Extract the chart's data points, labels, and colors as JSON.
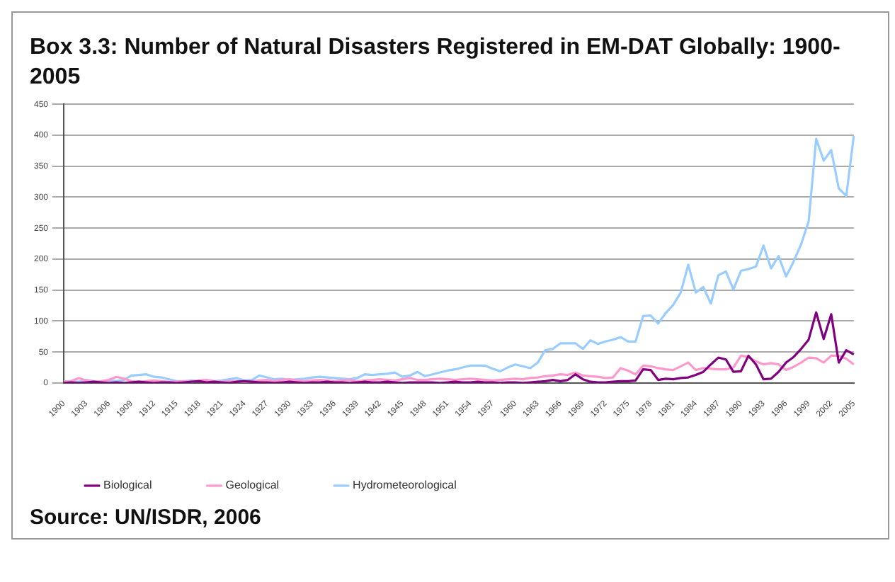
{
  "chart_data": {
    "type": "line",
    "title": "Box 3.3: Number of Natural Disasters Registered in EM-DAT Globally: 1900-2005",
    "categories": [
      "1900",
      null,
      null,
      "1903",
      null,
      null,
      "1906",
      null,
      null,
      "1909",
      null,
      null,
      "1912",
      null,
      null,
      "1915",
      null,
      null,
      "1918",
      null,
      null,
      "1921",
      null,
      null,
      "1924",
      null,
      null,
      "1927",
      null,
      null,
      "1930",
      null,
      null,
      "1933",
      null,
      null,
      "1936",
      null,
      null,
      "1939",
      null,
      null,
      "1942",
      null,
      null,
      "1945",
      null,
      null,
      "1948",
      null,
      null,
      "1951",
      null,
      null,
      "1954",
      null,
      null,
      "1957",
      null,
      null,
      "1960",
      null,
      null,
      "1963",
      null,
      null,
      "1966",
      null,
      null,
      "1969",
      null,
      null,
      "1972",
      null,
      null,
      "1975",
      null,
      null,
      "1978",
      null,
      null,
      "1981",
      null,
      null,
      "1984",
      null,
      null,
      "1987",
      null,
      null,
      "1990",
      null,
      null,
      "1993",
      null,
      null,
      "1996",
      null,
      null,
      "1999",
      null,
      null,
      "2002",
      null,
      null,
      "2005"
    ],
    "series": [
      {
        "name": "Biological",
        "color": "#800080",
        "values": [
          0,
          1,
          0,
          1,
          2,
          1,
          0,
          1,
          0,
          1,
          2,
          1,
          0,
          1,
          1,
          0,
          1,
          2,
          3,
          1,
          2,
          1,
          0,
          2,
          3,
          2,
          1,
          1,
          0,
          1,
          2,
          1,
          0,
          1,
          1,
          2,
          1,
          1,
          0,
          1,
          2,
          1,
          1,
          2,
          1,
          0,
          1,
          1,
          1,
          1,
          0,
          1,
          2,
          1,
          1,
          2,
          1,
          1,
          0,
          1,
          1,
          0,
          1,
          2,
          3,
          5,
          3,
          5,
          14,
          6,
          2,
          1,
          1,
          2,
          3,
          3,
          4,
          22,
          21,
          5,
          7,
          6,
          8,
          9,
          13,
          18,
          30,
          41,
          38,
          18,
          19,
          44,
          30,
          6,
          7,
          18,
          33,
          42,
          55,
          70,
          114,
          71,
          111,
          33,
          53,
          46
        ]
      },
      {
        "name": "Geological",
        "color": "#ff99cc",
        "values": [
          2,
          3,
          8,
          4,
          2,
          3,
          5,
          10,
          7,
          3,
          2,
          3,
          4,
          3,
          2,
          2,
          3,
          2,
          4,
          5,
          3,
          2,
          3,
          3,
          2,
          3,
          4,
          5,
          3,
          5,
          6,
          4,
          3,
          4,
          5,
          4,
          3,
          4,
          5,
          3,
          4,
          5,
          6,
          5,
          4,
          6,
          8,
          5,
          5,
          6,
          7,
          6,
          5,
          6,
          7,
          6,
          5,
          4,
          5,
          6,
          7,
          6,
          8,
          9,
          11,
          12,
          14,
          13,
          17,
          12,
          11,
          10,
          8,
          9,
          24,
          20,
          14,
          28,
          27,
          24,
          22,
          21,
          27,
          33,
          21,
          24,
          23,
          22,
          22,
          25,
          44,
          42,
          35,
          30,
          32,
          30,
          21,
          26,
          33,
          41,
          40,
          33,
          44,
          44,
          39,
          30
        ]
      },
      {
        "name": "Hydrometeorological",
        "color": "#99ccff",
        "values": [
          2,
          3,
          2,
          5,
          3,
          2,
          4,
          3,
          5,
          12,
          13,
          14,
          10,
          9,
          6,
          3,
          3,
          4,
          3,
          4,
          3,
          4,
          6,
          8,
          4,
          5,
          12,
          9,
          6,
          7,
          5,
          6,
          7,
          9,
          10,
          9,
          8,
          7,
          6,
          8,
          14,
          13,
          14,
          15,
          17,
          10,
          12,
          18,
          11,
          14,
          17,
          20,
          22,
          25,
          28,
          28,
          28,
          23,
          19,
          25,
          30,
          27,
          24,
          33,
          53,
          55,
          64,
          64,
          64,
          55,
          69,
          63,
          67,
          70,
          74,
          67,
          67,
          108,
          109,
          96,
          113,
          126,
          146,
          191,
          146,
          155,
          128,
          174,
          180,
          151,
          181,
          184,
          188,
          222,
          185,
          205,
          172,
          196,
          224,
          261,
          394,
          359,
          376,
          314,
          302,
          399
        ]
      }
    ],
    "ylim": [
      0,
      450
    ],
    "yticks": [
      0,
      50,
      100,
      150,
      200,
      250,
      300,
      350,
      400,
      450
    ],
    "grid": "y",
    "legend": "bottom",
    "marker": "none",
    "line_style": "solid",
    "annotations": [
      "Source: UN/ISDR, 2006"
    ]
  }
}
